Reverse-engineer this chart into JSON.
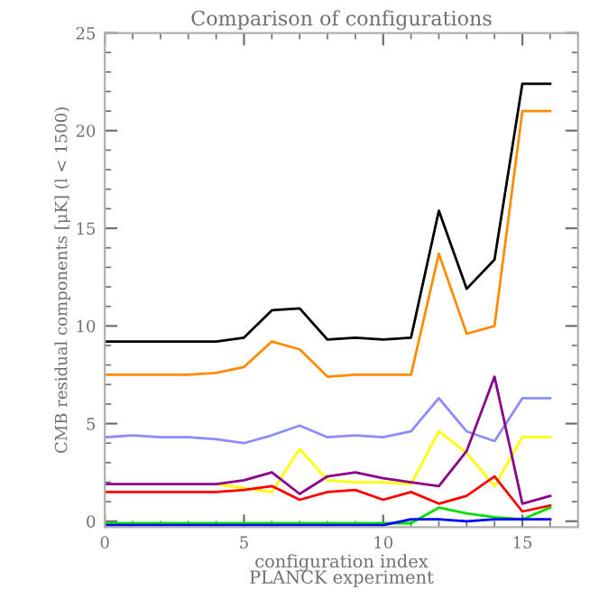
{
  "chart_data": {
    "type": "line",
    "title": "Comparison of configurations",
    "xlabel": "configuration index\nPLANCK experiment",
    "ylabel": "CMB residual components [μK] (l < 1500)",
    "x": [
      0,
      1,
      2,
      3,
      4,
      5,
      6,
      7,
      8,
      9,
      10,
      11,
      12,
      13,
      14,
      15,
      16
    ],
    "series": [
      {
        "color": "#000000",
        "values": [
          9.2,
          9.2,
          9.2,
          9.2,
          9.2,
          9.4,
          10.8,
          10.9,
          9.3,
          9.4,
          9.3,
          9.4,
          15.9,
          11.9,
          13.4,
          22.4,
          22.4
        ]
      },
      {
        "color": "#ff8c00",
        "values": [
          7.5,
          7.5,
          7.5,
          7.5,
          7.6,
          7.9,
          9.2,
          8.8,
          7.4,
          7.5,
          7.5,
          7.5,
          13.7,
          9.6,
          10.0,
          21.0,
          21.0
        ]
      },
      {
        "color": "#8c8cff",
        "values": [
          4.3,
          4.4,
          4.3,
          4.3,
          4.2,
          4.0,
          4.4,
          4.9,
          4.3,
          4.4,
          4.3,
          4.6,
          6.3,
          4.6,
          4.1,
          6.3,
          6.3
        ]
      },
      {
        "color": "#ffff00",
        "values": [
          null,
          null,
          null,
          null,
          1.9,
          1.7,
          1.5,
          3.7,
          2.1,
          2.0,
          2.0,
          1.9,
          4.6,
          3.5,
          1.8,
          4.3,
          4.3
        ]
      },
      {
        "color": "#8b008b",
        "values": [
          1.9,
          1.9,
          1.9,
          1.9,
          1.9,
          2.1,
          2.5,
          1.4,
          2.3,
          2.5,
          2.2,
          2.0,
          1.8,
          3.6,
          7.4,
          0.9,
          1.3
        ]
      },
      {
        "color": "#ff0000",
        "values": [
          1.5,
          1.5,
          1.5,
          1.5,
          1.5,
          1.6,
          1.8,
          1.1,
          1.5,
          1.6,
          1.1,
          1.5,
          0.9,
          1.3,
          2.3,
          0.5,
          0.8
        ]
      },
      {
        "color": "#00e000",
        "values": [
          -0.1,
          -0.1,
          -0.1,
          -0.1,
          -0.1,
          -0.1,
          -0.1,
          -0.1,
          -0.1,
          -0.1,
          -0.1,
          -0.1,
          0.7,
          0.4,
          0.2,
          0.1,
          0.7
        ]
      },
      {
        "color": "#0000ff",
        "values": [
          -0.2,
          -0.2,
          -0.2,
          -0.2,
          -0.2,
          -0.2,
          -0.2,
          -0.2,
          -0.2,
          -0.2,
          -0.2,
          0.1,
          0.1,
          0.0,
          0.1,
          0.1,
          0.1
        ]
      }
    ],
    "xlim": [
      0,
      17
    ],
    "xticks": [
      0,
      5,
      10,
      15
    ],
    "ylim": [
      -0.3,
      25
    ],
    "yticks": [
      0,
      5,
      10,
      15,
      20,
      25
    ],
    "grid": false,
    "legend": false,
    "marker": "none",
    "line_style": "solid"
  }
}
